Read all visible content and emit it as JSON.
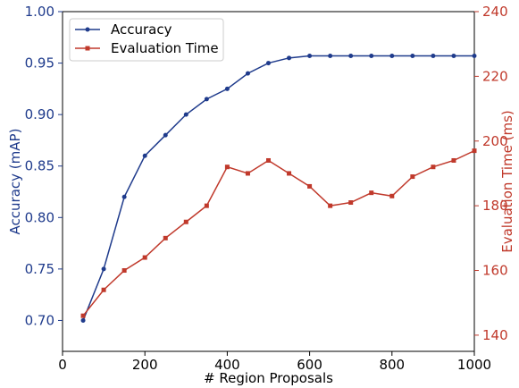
{
  "chart_data": {
    "type": "line",
    "xlabel": "# Region Proposals",
    "ylabel_left": "Accuracy (mAP)",
    "ylabel_right": "Evaluation Time (ms)",
    "xlim": [
      0,
      1000
    ],
    "ylim_left": [
      0.67,
      1.0
    ],
    "ylim_right": [
      135,
      240
    ],
    "x_ticks": [
      "0",
      "200",
      "400",
      "600",
      "800",
      "1000"
    ],
    "y_left_ticks": [
      "0.70",
      "0.75",
      "0.80",
      "0.85",
      "0.90",
      "0.95",
      "1.00"
    ],
    "y_right_ticks": [
      "140",
      "160",
      "180",
      "200",
      "220",
      "240"
    ],
    "grid": false,
    "legend_position": "top-left",
    "series": [
      {
        "name": "Accuracy",
        "axis": "left",
        "color": "#1f3b8c",
        "marker": "circle",
        "x": [
          50,
          100,
          150,
          200,
          250,
          300,
          350,
          400,
          450,
          500,
          550,
          600,
          650,
          700,
          750,
          800,
          850,
          900,
          950,
          1000
        ],
        "y": [
          0.7,
          0.75,
          0.82,
          0.86,
          0.88,
          0.9,
          0.915,
          0.925,
          0.94,
          0.95,
          0.955,
          0.957,
          0.957,
          0.957,
          0.957,
          0.957,
          0.957,
          0.957,
          0.957,
          0.957
        ]
      },
      {
        "name": "Evaluation Time",
        "axis": "right",
        "color": "#c0392b",
        "marker": "square",
        "x": [
          50,
          100,
          150,
          200,
          250,
          300,
          350,
          400,
          450,
          500,
          550,
          600,
          650,
          700,
          750,
          800,
          850,
          900,
          950,
          1000
        ],
        "y": [
          146,
          154,
          160,
          164,
          170,
          175,
          180,
          192,
          190,
          194,
          190,
          186,
          180,
          181,
          184,
          183,
          189,
          192,
          194,
          197
        ]
      }
    ]
  },
  "colors": {
    "left_axis": "#1f3b8c",
    "right_axis": "#c0392b",
    "frame": "#000000"
  }
}
